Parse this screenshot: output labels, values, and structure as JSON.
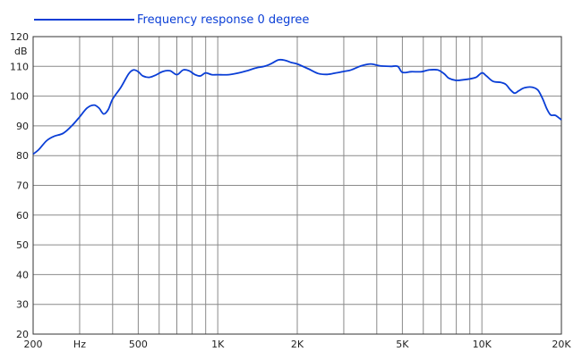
{
  "chart_data": {
    "type": "line",
    "title": "",
    "xlabel": "",
    "ylabel": "dB",
    "x_scale": "log",
    "xlim": [
      200,
      20000
    ],
    "ylim": [
      20,
      120
    ],
    "grid": true,
    "legend_position": "top-left",
    "line_color": "#0a3ed6",
    "y_ticks": [
      20,
      30,
      40,
      50,
      60,
      70,
      80,
      90,
      100,
      110,
      120
    ],
    "x_tick_labels": [
      {
        "x": 200,
        "label": "200"
      },
      {
        "x": 300,
        "label": "Hz"
      },
      {
        "x": 500,
        "label": "500"
      },
      {
        "x": 1000,
        "label": "1K"
      },
      {
        "x": 2000,
        "label": "2K"
      },
      {
        "x": 5000,
        "label": "5K"
      },
      {
        "x": 10000,
        "label": "10K"
      },
      {
        "x": 20000,
        "label": "20K"
      }
    ],
    "x_gridlines": [
      300,
      400,
      500,
      600,
      700,
      800,
      900,
      1000,
      2000,
      3000,
      4000,
      5000,
      6000,
      7000,
      8000,
      9000,
      10000
    ],
    "series": [
      {
        "name": "Frequency response 0 degree",
        "points": [
          [
            200,
            80.5
          ],
          [
            210,
            82
          ],
          [
            225,
            85
          ],
          [
            240,
            86.5
          ],
          [
            260,
            87.5
          ],
          [
            280,
            90
          ],
          [
            300,
            93
          ],
          [
            320,
            96
          ],
          [
            340,
            97
          ],
          [
            355,
            96
          ],
          [
            370,
            94
          ],
          [
            385,
            95.5
          ],
          [
            400,
            99
          ],
          [
            430,
            103
          ],
          [
            460,
            107.5
          ],
          [
            480,
            108.8
          ],
          [
            500,
            108.2
          ],
          [
            520,
            106.8
          ],
          [
            550,
            106.3
          ],
          [
            580,
            107
          ],
          [
            620,
            108.3
          ],
          [
            660,
            108.5
          ],
          [
            700,
            107.2
          ],
          [
            740,
            108.8
          ],
          [
            780,
            108.5
          ],
          [
            820,
            107.2
          ],
          [
            860,
            106.8
          ],
          [
            900,
            107.8
          ],
          [
            950,
            107.2
          ],
          [
            1000,
            107.2
          ],
          [
            1100,
            107.2
          ],
          [
            1200,
            107.8
          ],
          [
            1300,
            108.6
          ],
          [
            1400,
            109.5
          ],
          [
            1500,
            110.0
          ],
          [
            1600,
            111
          ],
          [
            1700,
            112.2
          ],
          [
            1800,
            112
          ],
          [
            1900,
            111.3
          ],
          [
            2000,
            110.8
          ],
          [
            2200,
            109.2
          ],
          [
            2400,
            107.6
          ],
          [
            2600,
            107.3
          ],
          [
            2800,
            107.8
          ],
          [
            3000,
            108.3
          ],
          [
            3200,
            108.8
          ],
          [
            3500,
            110.2
          ],
          [
            3800,
            110.8
          ],
          [
            4100,
            110.2
          ],
          [
            4500,
            110
          ],
          [
            4800,
            110
          ],
          [
            5000,
            108
          ],
          [
            5400,
            108.2
          ],
          [
            5900,
            108.2
          ],
          [
            6300,
            108.8
          ],
          [
            6800,
            108.8
          ],
          [
            7200,
            107.5
          ],
          [
            7500,
            106.0
          ],
          [
            8000,
            105.3
          ],
          [
            8500,
            105.5
          ],
          [
            9000,
            105.8
          ],
          [
            9500,
            106.3
          ],
          [
            10000,
            107.8
          ],
          [
            10400,
            106.8
          ],
          [
            11000,
            105.0
          ],
          [
            11800,
            104.6
          ],
          [
            12300,
            104.0
          ],
          [
            12800,
            102.2
          ],
          [
            13300,
            101.0
          ],
          [
            13800,
            101.8
          ],
          [
            14500,
            102.8
          ],
          [
            15500,
            103
          ],
          [
            16300,
            102.0
          ],
          [
            17000,
            99.0
          ],
          [
            17600,
            95.8
          ],
          [
            18200,
            93.7
          ],
          [
            19000,
            93.5
          ],
          [
            20000,
            92
          ]
        ]
      }
    ]
  }
}
